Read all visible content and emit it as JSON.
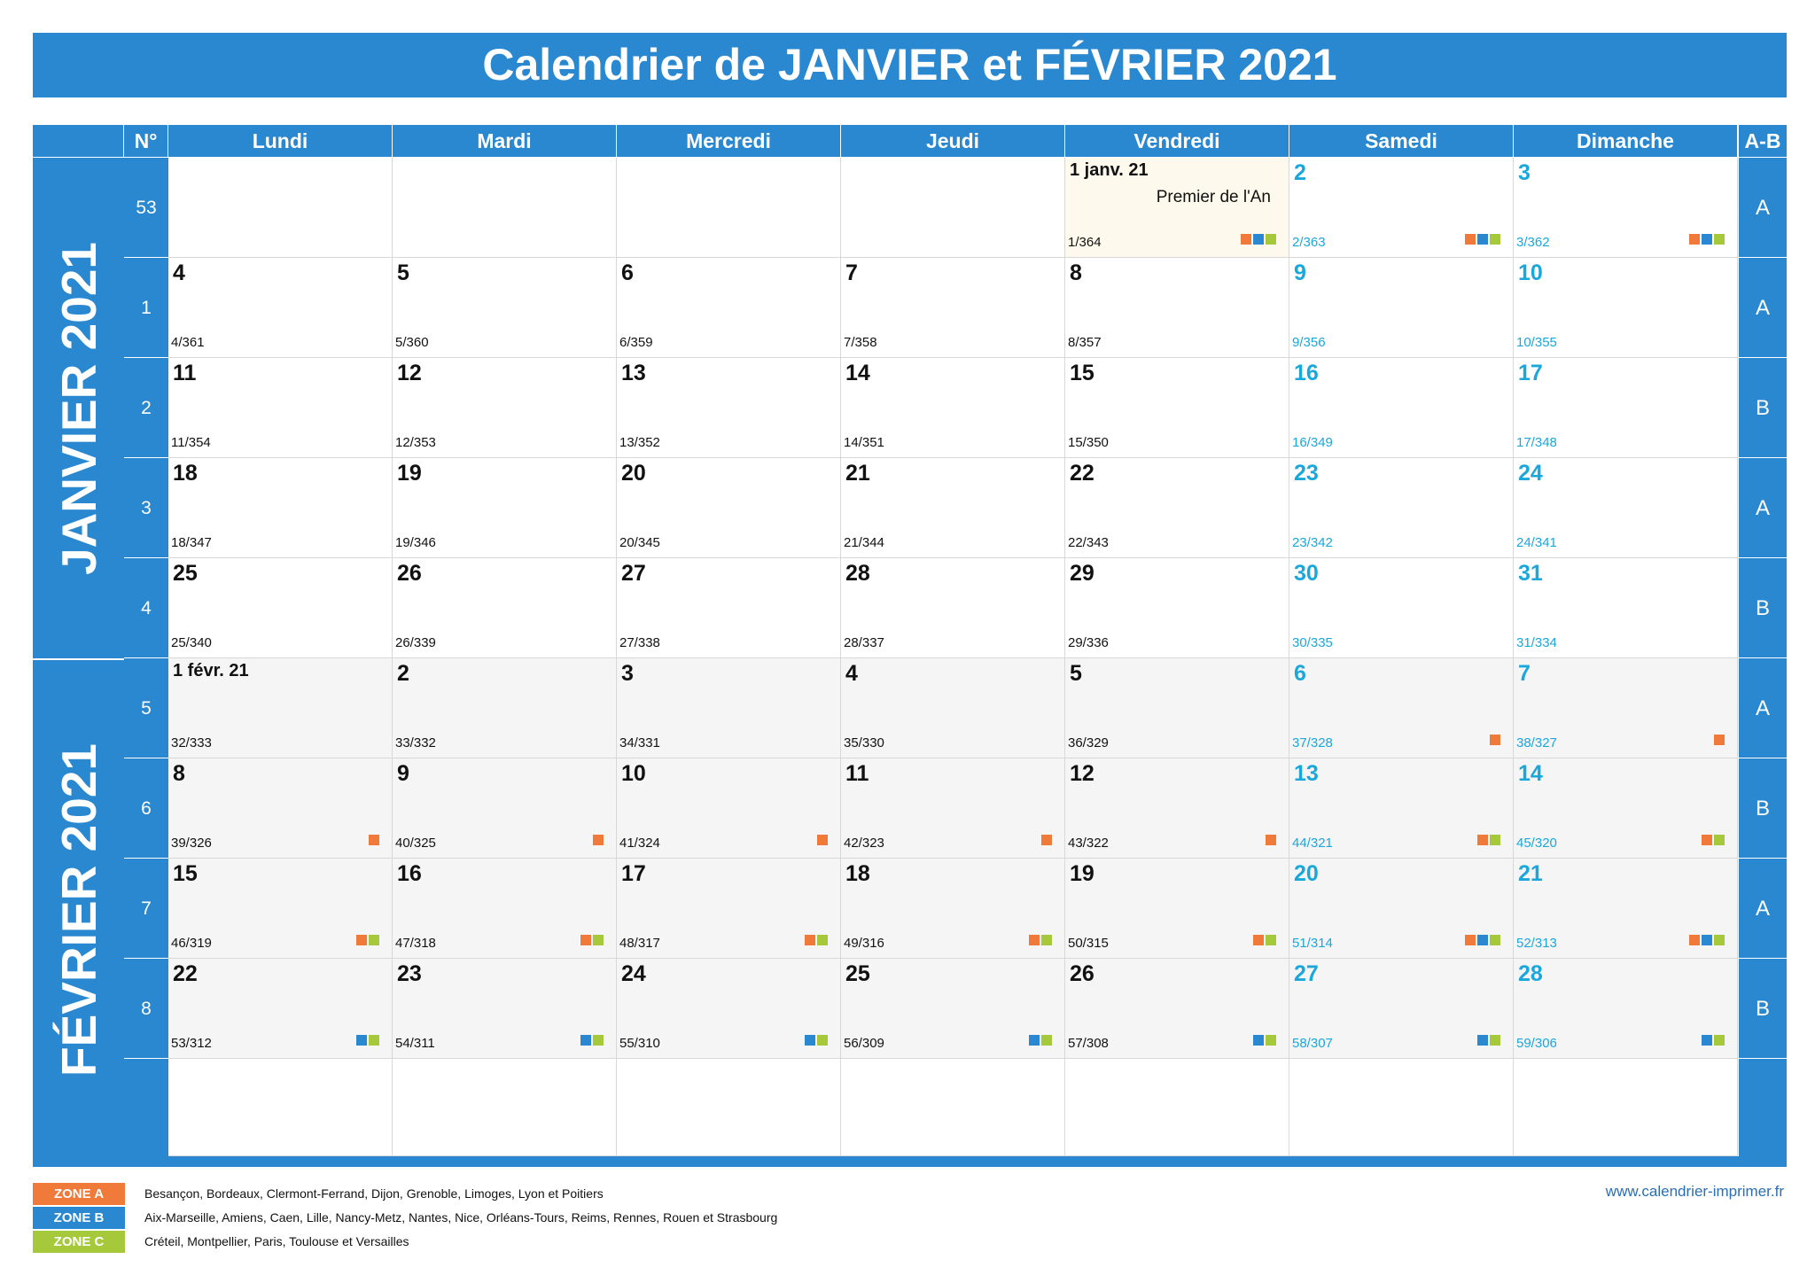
{
  "title": "Calendrier de JANVIER et FÉVRIER 2021",
  "colors": {
    "header_blue": "#2a88d0",
    "weekend_text": "#1aa7dc",
    "zone_a": "#f07a3a",
    "zone_b": "#2a88d0",
    "zone_c": "#a5c93b",
    "holiday_bg": "#fdf9ec",
    "february_bg": "#f5f5f5"
  },
  "header": {
    "number": "N°",
    "days": [
      "Lundi",
      "Mardi",
      "Mercredi",
      "Jeudi",
      "Vendredi",
      "Samedi",
      "Dimanche"
    ],
    "ab": "A-B"
  },
  "months": [
    {
      "label": "JANVIER 2021"
    },
    {
      "label": "FÉVRIER 2021"
    }
  ],
  "weeks": [
    {
      "number": "53",
      "ab": "A"
    },
    {
      "number": "1",
      "ab": "A"
    },
    {
      "number": "2",
      "ab": "B"
    },
    {
      "number": "3",
      "ab": "A"
    },
    {
      "number": "4",
      "ab": "B"
    },
    {
      "number": "5",
      "ab": "A"
    },
    {
      "number": "6",
      "ab": "B"
    },
    {
      "number": "7",
      "ab": "A"
    },
    {
      "number": "8",
      "ab": "B"
    }
  ],
  "holiday": {
    "name": "Premier de l'An"
  },
  "days": [
    [
      {
        "num": "",
        "ord": "",
        "empty": true
      },
      {
        "num": "",
        "ord": "",
        "empty": true
      },
      {
        "num": "",
        "ord": "",
        "empty": true
      },
      {
        "num": "",
        "ord": "",
        "empty": true
      },
      {
        "num": "1 janv. 21",
        "ord": "1/364",
        "holiday": true,
        "zones": [
          "A",
          "B",
          "C"
        ]
      },
      {
        "num": "2",
        "ord": "2/363",
        "zones": [
          "A",
          "B",
          "C"
        ]
      },
      {
        "num": "3",
        "ord": "3/362",
        "zones": [
          "A",
          "B",
          "C"
        ]
      }
    ],
    [
      {
        "num": "4",
        "ord": "4/361"
      },
      {
        "num": "5",
        "ord": "5/360"
      },
      {
        "num": "6",
        "ord": "6/359"
      },
      {
        "num": "7",
        "ord": "7/358"
      },
      {
        "num": "8",
        "ord": "8/357"
      },
      {
        "num": "9",
        "ord": "9/356"
      },
      {
        "num": "10",
        "ord": "10/355"
      }
    ],
    [
      {
        "num": "11",
        "ord": "11/354"
      },
      {
        "num": "12",
        "ord": "12/353"
      },
      {
        "num": "13",
        "ord": "13/352"
      },
      {
        "num": "14",
        "ord": "14/351"
      },
      {
        "num": "15",
        "ord": "15/350"
      },
      {
        "num": "16",
        "ord": "16/349"
      },
      {
        "num": "17",
        "ord": "17/348"
      }
    ],
    [
      {
        "num": "18",
        "ord": "18/347"
      },
      {
        "num": "19",
        "ord": "19/346"
      },
      {
        "num": "20",
        "ord": "20/345"
      },
      {
        "num": "21",
        "ord": "21/344"
      },
      {
        "num": "22",
        "ord": "22/343"
      },
      {
        "num": "23",
        "ord": "23/342"
      },
      {
        "num": "24",
        "ord": "24/341"
      }
    ],
    [
      {
        "num": "25",
        "ord": "25/340"
      },
      {
        "num": "26",
        "ord": "26/339"
      },
      {
        "num": "27",
        "ord": "27/338"
      },
      {
        "num": "28",
        "ord": "28/337"
      },
      {
        "num": "29",
        "ord": "29/336"
      },
      {
        "num": "30",
        "ord": "30/335"
      },
      {
        "num": "31",
        "ord": "31/334"
      }
    ],
    [
      {
        "num": "1 févr. 21",
        "ord": "32/333",
        "feb": true
      },
      {
        "num": "2",
        "ord": "33/332",
        "feb": true
      },
      {
        "num": "3",
        "ord": "34/331",
        "feb": true
      },
      {
        "num": "4",
        "ord": "35/330",
        "feb": true
      },
      {
        "num": "5",
        "ord": "36/329",
        "feb": true
      },
      {
        "num": "6",
        "ord": "37/328",
        "feb": true,
        "zones": [
          "A"
        ]
      },
      {
        "num": "7",
        "ord": "38/327",
        "feb": true,
        "zones": [
          "A"
        ]
      }
    ],
    [
      {
        "num": "8",
        "ord": "39/326",
        "feb": true,
        "zones": [
          "A"
        ]
      },
      {
        "num": "9",
        "ord": "40/325",
        "feb": true,
        "zones": [
          "A"
        ]
      },
      {
        "num": "10",
        "ord": "41/324",
        "feb": true,
        "zones": [
          "A"
        ]
      },
      {
        "num": "11",
        "ord": "42/323",
        "feb": true,
        "zones": [
          "A"
        ]
      },
      {
        "num": "12",
        "ord": "43/322",
        "feb": true,
        "zones": [
          "A"
        ]
      },
      {
        "num": "13",
        "ord": "44/321",
        "feb": true,
        "zones": [
          "A",
          "C"
        ]
      },
      {
        "num": "14",
        "ord": "45/320",
        "feb": true,
        "zones": [
          "A",
          "C"
        ]
      }
    ],
    [
      {
        "num": "15",
        "ord": "46/319",
        "feb": true,
        "zones": [
          "A",
          "C"
        ]
      },
      {
        "num": "16",
        "ord": "47/318",
        "feb": true,
        "zones": [
          "A",
          "C"
        ]
      },
      {
        "num": "17",
        "ord": "48/317",
        "feb": true,
        "zones": [
          "A",
          "C"
        ]
      },
      {
        "num": "18",
        "ord": "49/316",
        "feb": true,
        "zones": [
          "A",
          "C"
        ]
      },
      {
        "num": "19",
        "ord": "50/315",
        "feb": true,
        "zones": [
          "A",
          "C"
        ]
      },
      {
        "num": "20",
        "ord": "51/314",
        "feb": true,
        "zones": [
          "A",
          "B",
          "C"
        ]
      },
      {
        "num": "21",
        "ord": "52/313",
        "feb": true,
        "zones": [
          "A",
          "B",
          "C"
        ]
      }
    ],
    [
      {
        "num": "22",
        "ord": "53/312",
        "feb": true,
        "zones": [
          "B",
          "C"
        ]
      },
      {
        "num": "23",
        "ord": "54/311",
        "feb": true,
        "zones": [
          "B",
          "C"
        ]
      },
      {
        "num": "24",
        "ord": "55/310",
        "feb": true,
        "zones": [
          "B",
          "C"
        ]
      },
      {
        "num": "25",
        "ord": "56/309",
        "feb": true,
        "zones": [
          "B",
          "C"
        ]
      },
      {
        "num": "26",
        "ord": "57/308",
        "feb": true,
        "zones": [
          "B",
          "C"
        ]
      },
      {
        "num": "27",
        "ord": "58/307",
        "feb": true,
        "zones": [
          "B",
          "C"
        ]
      },
      {
        "num": "28",
        "ord": "59/306",
        "feb": true,
        "zones": [
          "B",
          "C"
        ]
      }
    ]
  ],
  "legend": [
    {
      "zone": "ZONE A",
      "color": "#f07a3a",
      "cities": "Besançon, Bordeaux, Clermont-Ferrand, Dijon, Grenoble, Limoges, Lyon et Poitiers"
    },
    {
      "zone": "ZONE B",
      "color": "#2a88d0",
      "cities": "Aix-Marseille, Amiens, Caen, Lille, Nancy-Metz, Nantes, Nice, Orléans-Tours, Reims, Rennes, Rouen et Strasbourg"
    },
    {
      "zone": "ZONE C",
      "color": "#a5c93b",
      "cities": "Créteil, Montpellier, Paris, Toulouse et Versailles"
    }
  ],
  "website": "www.calendrier-imprimer.fr"
}
